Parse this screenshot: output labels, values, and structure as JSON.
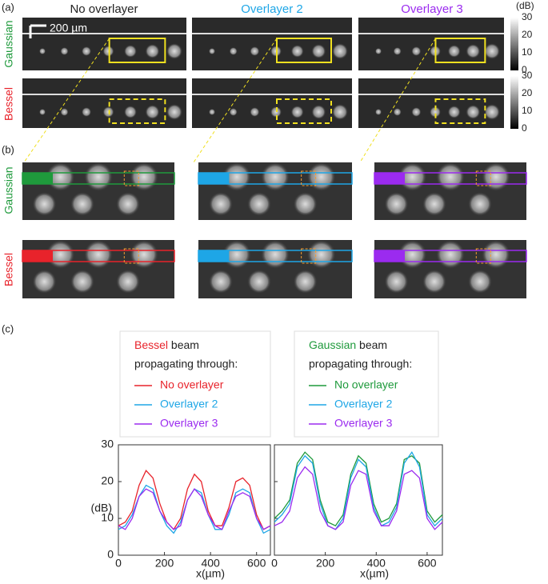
{
  "panel_a": {
    "label": "(a)",
    "columns": [
      "No overlayer",
      "Overlayer 2",
      "Overlayer 3"
    ],
    "rows": [
      "Gaussian",
      "Bessel"
    ],
    "scale_bar": "200 µm",
    "colorbar": {
      "unit": "(dB)",
      "ticks": [
        "30",
        "20",
        "10",
        "0"
      ]
    }
  },
  "panel_b": {
    "label": "(b)",
    "rows": [
      "Gaussian",
      "Bessel"
    ]
  },
  "panel_c": {
    "label": "(c)"
  },
  "chart_data": [
    {
      "type": "line",
      "legend_title_colored": "Bessel",
      "legend_title": "beam",
      "legend_subtitle": "propagating through:",
      "ylabel": "(dB)",
      "xlabel": "x(µm)",
      "x": [
        0,
        30,
        60,
        90,
        120,
        150,
        180,
        210,
        240,
        270,
        300,
        330,
        360,
        390,
        420,
        450,
        480,
        510,
        540,
        570,
        600,
        630,
        660
      ],
      "xlim": [
        0,
        660
      ],
      "xticks": [
        0,
        200,
        400,
        600
      ],
      "ylim": [
        0,
        30
      ],
      "yticks": [
        0,
        10,
        20,
        30
      ],
      "show_ytick_labels": true,
      "series": [
        {
          "name": "No overlayer",
          "color": "#e8232b",
          "values": [
            8,
            9,
            12,
            19,
            23,
            21,
            14,
            9,
            7,
            10,
            18,
            22,
            20,
            12,
            8,
            8,
            13,
            20,
            21,
            19,
            11,
            7,
            8
          ]
        },
        {
          "name": "Overlayer 2",
          "color": "#1ea6e6",
          "values": [
            7,
            8,
            11,
            16,
            19,
            18,
            12,
            8,
            6,
            9,
            15,
            18,
            17,
            11,
            7,
            7,
            11,
            17,
            18,
            17,
            10,
            6,
            7
          ]
        },
        {
          "name": "Overlayer 3",
          "color": "#9b2bef",
          "values": [
            8,
            7,
            10,
            16,
            18,
            17,
            12,
            9,
            7,
            8,
            15,
            18,
            16,
            11,
            8,
            7,
            12,
            16,
            17,
            16,
            10,
            7,
            8
          ]
        }
      ]
    },
    {
      "type": "line",
      "legend_title_colored": "Gaussian",
      "legend_title": "beam",
      "legend_subtitle": "propagating through:",
      "xlabel": "x(µm)",
      "x": [
        0,
        30,
        60,
        90,
        120,
        150,
        180,
        210,
        240,
        270,
        300,
        330,
        360,
        390,
        420,
        450,
        480,
        510,
        540,
        570,
        600,
        630,
        660
      ],
      "xlim": [
        0,
        660
      ],
      "xticks": [
        0,
        200,
        400,
        600
      ],
      "ylim": [
        0,
        30
      ],
      "yticks": [
        0,
        10,
        20,
        30
      ],
      "show_ytick_labels": false,
      "series": [
        {
          "name": "No overlayer",
          "color": "#1f9a3c",
          "values": [
            10,
            12,
            15,
            25,
            28,
            26,
            15,
            9,
            8,
            11,
            22,
            27,
            25,
            14,
            9,
            10,
            14,
            26,
            27,
            25,
            12,
            9,
            11
          ]
        },
        {
          "name": "Overlayer 2",
          "color": "#1ea6e6",
          "values": [
            9,
            11,
            14,
            24,
            27,
            25,
            14,
            8,
            7,
            10,
            21,
            26,
            24,
            13,
            8,
            9,
            13,
            25,
            28,
            24,
            11,
            8,
            10
          ]
        },
        {
          "name": "Overlayer 3",
          "color": "#9b2bef",
          "values": [
            8,
            9,
            12,
            21,
            24,
            22,
            12,
            8,
            7,
            9,
            19,
            23,
            22,
            12,
            8,
            8,
            12,
            22,
            23,
            21,
            10,
            7,
            9
          ]
        }
      ]
    }
  ]
}
